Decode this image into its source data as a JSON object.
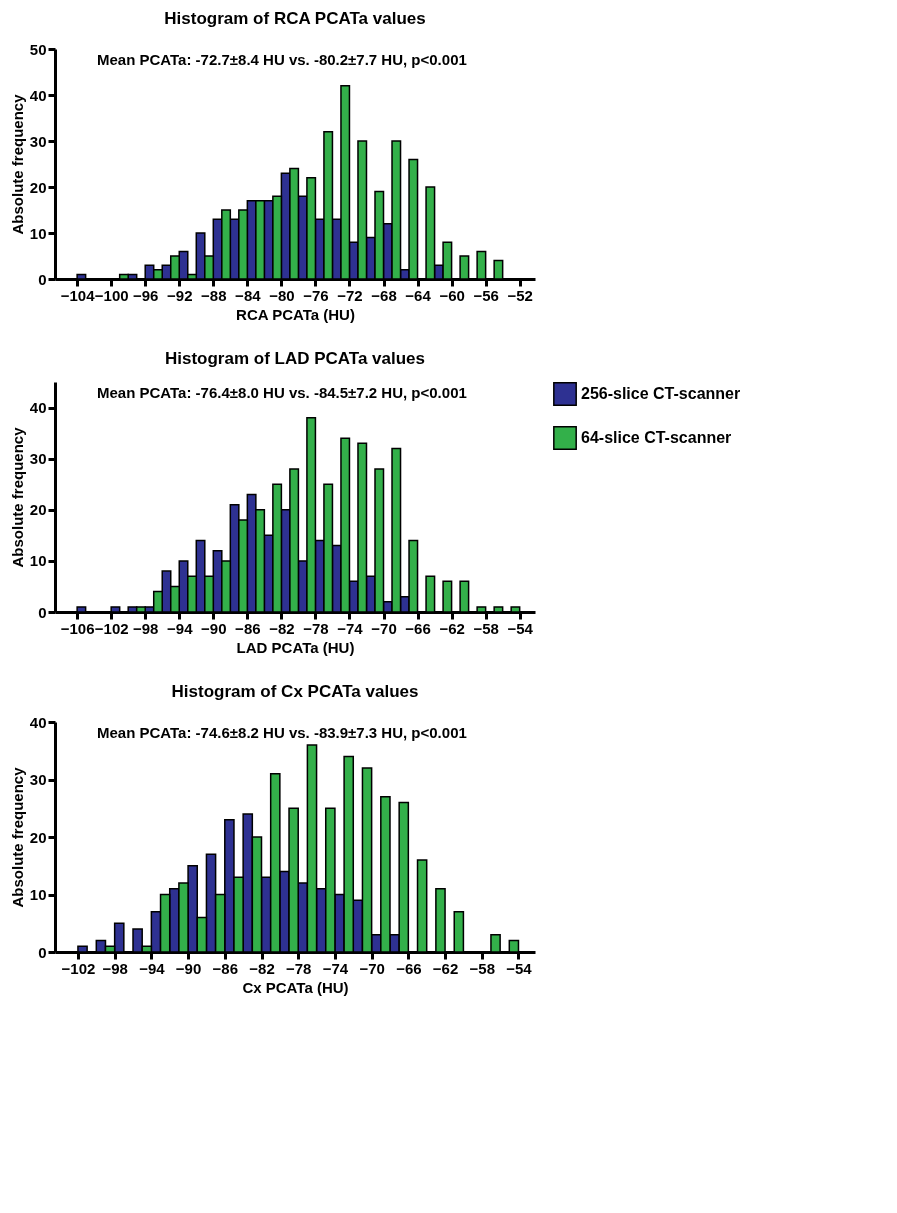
{
  "chart_data": [
    {
      "type": "histogram",
      "title": "Histogram of RCA PCATa values",
      "xlabel": "RCA PCATa (HU)",
      "ylabel": "Absolute frequency",
      "annotations": [
        "Mean PCATa: -72.7±8.4 HU vs. -80.2±7.7 HU, p<0.001"
      ],
      "bins": [
        -104,
        -102,
        -100,
        -98,
        -96,
        -94,
        -92,
        -90,
        -88,
        -86,
        -84,
        -82,
        -80,
        -78,
        -76,
        -74,
        -72,
        -70,
        -68,
        -66,
        -64,
        -62,
        -60,
        -58,
        -56,
        -54
      ],
      "series": [
        {
          "color": "#2e3192",
          "values": [
            1,
            0,
            0,
            1,
            3,
            3,
            6,
            10,
            13,
            13,
            17,
            17,
            23,
            18,
            13,
            13,
            8,
            9,
            12,
            2,
            0,
            3,
            0,
            0,
            0
          ]
        },
        {
          "color": "#33b04a",
          "values": [
            0,
            0,
            1,
            0,
            2,
            5,
            1,
            5,
            15,
            15,
            17,
            18,
            24,
            22,
            32,
            42,
            30,
            19,
            30,
            26,
            20,
            8,
            5,
            6,
            4
          ]
        }
      ],
      "xlim": [
        -106.6,
        -50.2
      ],
      "xticks": [
        -104,
        -100,
        -96,
        -92,
        -88,
        -84,
        -80,
        -76,
        -72,
        -68,
        -64,
        -60,
        -56,
        -52
      ],
      "ylim": [
        0,
        50
      ],
      "yticks": [
        0,
        10,
        20,
        30,
        40,
        50
      ]
    },
    {
      "type": "histogram",
      "title": "Histogram of LAD PCATa values",
      "xlabel": "LAD PCATa (HU)",
      "ylabel": "Absolute frequency",
      "annotations": [
        "Mean PCATa: -76.4±8.0 HU vs. -84.5±7.2 HU, p<0.001"
      ],
      "bins": [
        -106,
        -104,
        -102,
        -100,
        -98,
        -96,
        -94,
        -92,
        -90,
        -88,
        -86,
        -84,
        -82,
        -80,
        -78,
        -76,
        -74,
        -72,
        -70,
        -68,
        -66,
        -64,
        -62,
        -60,
        -58,
        -56,
        -54
      ],
      "series": [
        {
          "name": "256-slice CT-scanner",
          "color": "#2e3192",
          "values": [
            1,
            0,
            1,
            1,
            1,
            8,
            10,
            14,
            12,
            21,
            23,
            15,
            20,
            10,
            14,
            13,
            6,
            7,
            2,
            3,
            0,
            0,
            0,
            0,
            0,
            0
          ]
        },
        {
          "name": "64-slice CT-scanner",
          "color": "#33b04a",
          "values": [
            0,
            0,
            0,
            1,
            4,
            5,
            7,
            7,
            10,
            18,
            20,
            25,
            28,
            38,
            25,
            34,
            33,
            28,
            32,
            14,
            7,
            6,
            6,
            1,
            1,
            1
          ]
        }
      ],
      "xlim": [
        -108.6,
        -52.2
      ],
      "xticks": [
        -106,
        -102,
        -98,
        -94,
        -90,
        -86,
        -82,
        -78,
        -74,
        -70,
        -66,
        -62,
        -58,
        -54
      ],
      "ylim": [
        0,
        45
      ],
      "yticks": [
        0,
        10,
        20,
        30,
        40
      ],
      "legend": "right"
    },
    {
      "type": "histogram",
      "title": "Histogram of Cx PCATa values",
      "xlabel": "Cx PCATa (HU)",
      "ylabel": "Absolute frequency",
      "annotations": [
        "Mean PCATa: -74.6±8.2 HU vs. -83.9±7.3 HU, p<0.001"
      ],
      "bins": [
        -102,
        -100,
        -98,
        -96,
        -94,
        -92,
        -90,
        -88,
        -86,
        -84,
        -82,
        -80,
        -78,
        -76,
        -74,
        -72,
        -70,
        -68,
        -66,
        -64,
        -62,
        -60,
        -58,
        -56,
        -54
      ],
      "series": [
        {
          "color": "#2e3192",
          "values": [
            1,
            2,
            5,
            4,
            7,
            11,
            15,
            17,
            23,
            24,
            13,
            14,
            12,
            11,
            10,
            9,
            3,
            3,
            0,
            0,
            0,
            0,
            0,
            0
          ]
        },
        {
          "color": "#33b04a",
          "values": [
            0,
            1,
            0,
            1,
            10,
            12,
            6,
            10,
            13,
            20,
            31,
            25,
            36,
            25,
            34,
            32,
            27,
            26,
            16,
            11,
            7,
            0,
            3,
            2
          ]
        }
      ],
      "xlim": [
        -104.5,
        -52.2
      ],
      "xticks": [
        -102,
        -98,
        -94,
        -90,
        -86,
        -82,
        -78,
        -74,
        -70,
        -66,
        -62,
        -58,
        -54
      ],
      "ylim": [
        0,
        40
      ],
      "yticks": [
        0,
        10,
        20,
        30,
        40
      ]
    }
  ]
}
